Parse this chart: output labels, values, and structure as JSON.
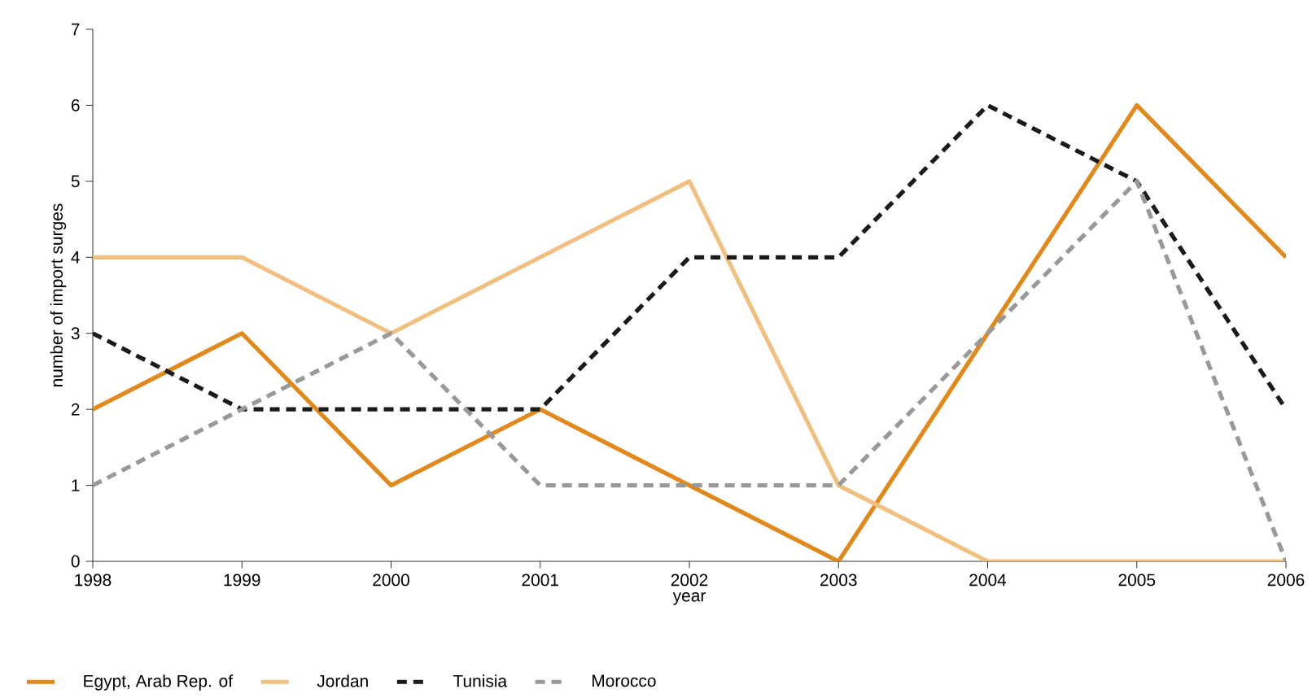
{
  "chart_data": {
    "type": "line",
    "xlabel": "year",
    "ylabel": "number of import surges",
    "x": [
      1998,
      1999,
      2000,
      2001,
      2002,
      2003,
      2004,
      2005,
      2006
    ],
    "xlim": [
      1998,
      2006
    ],
    "xticks": [
      1998,
      1999,
      2000,
      2001,
      2002,
      2003,
      2004,
      2005,
      2006
    ],
    "ylim": [
      0,
      7
    ],
    "yticks": [
      0,
      1,
      2,
      3,
      4,
      5,
      6,
      7
    ],
    "legend": "bottom",
    "series": [
      {
        "name": "Egypt, Arab Rep. of",
        "color": "#e08a1e",
        "line_style": "solid",
        "values": [
          2,
          3,
          1,
          2,
          1,
          0,
          3,
          6,
          4
        ]
      },
      {
        "name": "Jordan",
        "color": "#f0c080",
        "line_style": "solid",
        "values": [
          4,
          4,
          3,
          4,
          5,
          1,
          0,
          0,
          0
        ]
      },
      {
        "name": "Tunisia",
        "color": "#1a1a1a",
        "line_style": "dashed",
        "values": [
          3,
          2,
          2,
          2,
          4,
          4,
          6,
          5,
          2
        ]
      },
      {
        "name": "Morocco",
        "color": "#999999",
        "line_style": "dashed",
        "values": [
          1,
          2,
          3,
          1,
          1,
          1,
          3,
          5,
          0
        ]
      }
    ]
  }
}
